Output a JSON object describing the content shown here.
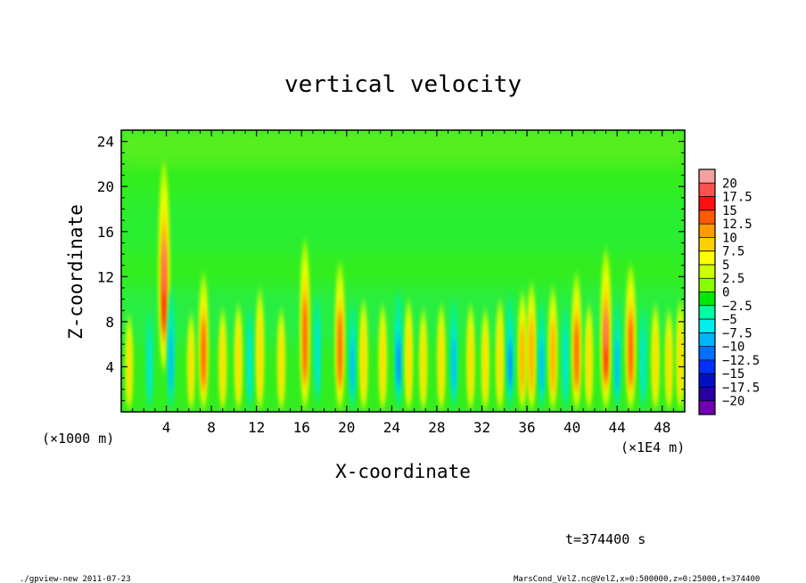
{
  "chart_data": {
    "type": "heatmap",
    "title": "vertical velocity",
    "xlabel": "X-coordinate",
    "ylabel": "Z-coordinate",
    "x_unit_left": "(×1000 m)",
    "x_unit_right": "(×1E4 m)",
    "x_ticks": [
      "4",
      "8",
      "12",
      "16",
      "20",
      "24",
      "28",
      "32",
      "36",
      "40",
      "44",
      "48"
    ],
    "y_ticks": [
      "4",
      "8",
      "12",
      "16",
      "20",
      "24"
    ],
    "xlim": [
      0,
      50
    ],
    "ylim": [
      0,
      25
    ],
    "colorbar": {
      "levels": [
        "20",
        "17.5",
        "15",
        "12.5",
        "10",
        "7.5",
        "5",
        "2.5",
        "0",
        "−2.5",
        "−5",
        "−7.5",
        "−10",
        "−12.5",
        "−15",
        "−17.5",
        "−20"
      ],
      "colors": [
        "#f4a0a0",
        "#ff5050",
        "#ff1010",
        "#ff5a00",
        "#ff9a00",
        "#ffd000",
        "#ffff00",
        "#ccff00",
        "#88ff00",
        "#00e800",
        "#00ffa0",
        "#00f0f0",
        "#00b4ff",
        "#0070ff",
        "#0030ff",
        "#0010c0",
        "#2800a0",
        "#7000b0"
      ]
    },
    "columns": [
      {
        "x": 0.7,
        "peak": 4,
        "amp": 2.5
      },
      {
        "x": 2.5,
        "peak": 4,
        "amp": -3
      },
      {
        "x": 3.8,
        "peak": 12,
        "amp": 17
      },
      {
        "x": 4.4,
        "peak": 5,
        "amp": -6
      },
      {
        "x": 6.2,
        "peak": 4,
        "amp": 3
      },
      {
        "x": 7.3,
        "peak": 4,
        "amp": 12
      },
      {
        "x": 9.0,
        "peak": 4,
        "amp": 4
      },
      {
        "x": 10.4,
        "peak": 4,
        "amp": 5
      },
      {
        "x": 11.4,
        "peak": 4,
        "amp": -4
      },
      {
        "x": 12.3,
        "peak": 5,
        "amp": 6
      },
      {
        "x": 14.2,
        "peak": 4,
        "amp": 4
      },
      {
        "x": 16.3,
        "peak": 7,
        "amp": 12
      },
      {
        "x": 17.4,
        "peak": 5,
        "amp": -4
      },
      {
        "x": 19.4,
        "peak": 5,
        "amp": 12
      },
      {
        "x": 20.5,
        "peak": 4,
        "amp": -5
      },
      {
        "x": 21.5,
        "peak": 4,
        "amp": 6
      },
      {
        "x": 23.2,
        "peak": 4,
        "amp": 5
      },
      {
        "x": 24.6,
        "peak": 4,
        "amp": -8
      },
      {
        "x": 25.5,
        "peak": 4,
        "amp": 6
      },
      {
        "x": 26.8,
        "peak": 4,
        "amp": 4
      },
      {
        "x": 28.4,
        "peak": 4,
        "amp": 5
      },
      {
        "x": 29.5,
        "peak": 4,
        "amp": -6
      },
      {
        "x": 31.0,
        "peak": 4,
        "amp": 5
      },
      {
        "x": 32.3,
        "peak": 4,
        "amp": 4
      },
      {
        "x": 33.6,
        "peak": 4,
        "amp": 6
      },
      {
        "x": 34.5,
        "peak": 4,
        "amp": -7
      },
      {
        "x": 35.6,
        "peak": 4,
        "amp": 8
      },
      {
        "x": 36.4,
        "peak": 4,
        "amp": 10
      },
      {
        "x": 37.3,
        "peak": 4,
        "amp": -5
      },
      {
        "x": 38.3,
        "peak": 4,
        "amp": 9
      },
      {
        "x": 39.4,
        "peak": 4,
        "amp": -4
      },
      {
        "x": 40.4,
        "peak": 4,
        "amp": 12
      },
      {
        "x": 41.5,
        "peak": 4,
        "amp": 5
      },
      {
        "x": 43.0,
        "peak": 5,
        "amp": 15
      },
      {
        "x": 44.0,
        "peak": 4,
        "amp": -5
      },
      {
        "x": 45.2,
        "peak": 4,
        "amp": 14
      },
      {
        "x": 46.3,
        "peak": 4,
        "amp": -4
      },
      {
        "x": 47.4,
        "peak": 4,
        "amp": 5
      },
      {
        "x": 48.6,
        "peak": 4,
        "amp": 4
      },
      {
        "x": 49.6,
        "peak": 4,
        "amp": 6
      }
    ]
  },
  "time_label": "t=374400 s",
  "footer_left": "./gpview-new  2011-07-23",
  "footer_right": "MarsCond_VelZ.nc@VelZ,x=0:500000,z=0:25000,t=374400"
}
